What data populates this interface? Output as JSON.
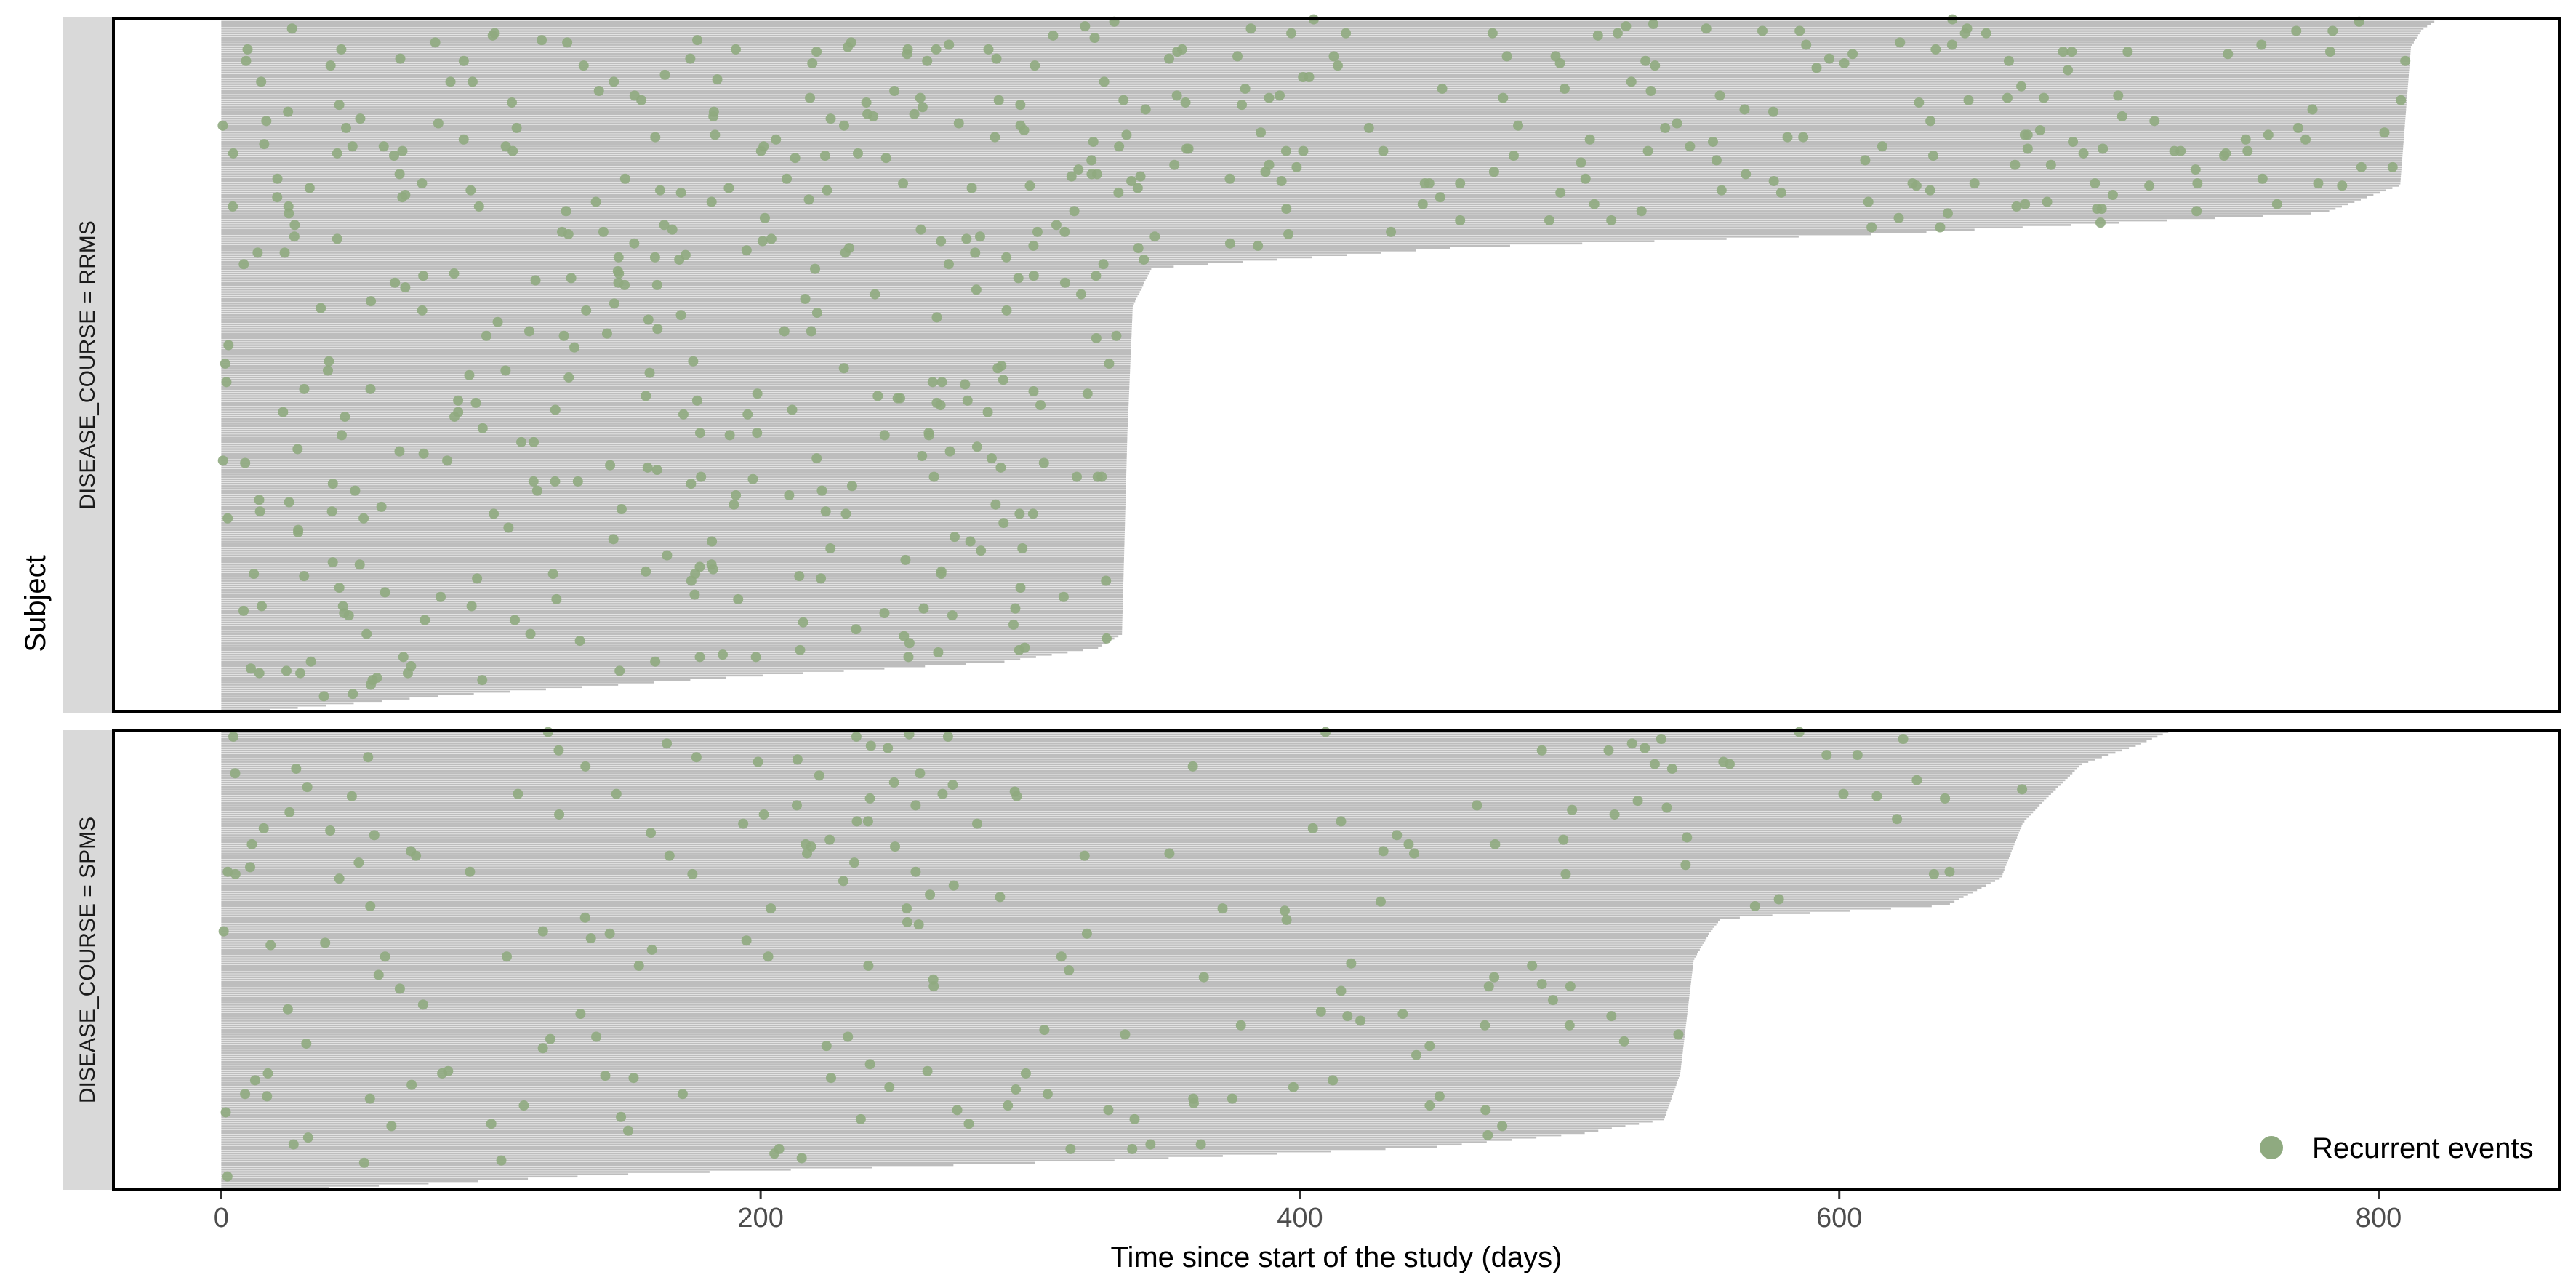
{
  "chart_data": {
    "type": "scatter",
    "subtype": "recurrent-event swimmer plot (horizontal follow-up bars per subject, events as points)",
    "xlabel": "Time since start of the study (days)",
    "ylabel": "Subject",
    "xlim": [
      -40,
      867
    ],
    "xticks": [
      0,
      200,
      400,
      600,
      800
    ],
    "grid": false,
    "legend": {
      "position": "bottom-right",
      "items": [
        {
          "label": "Recurrent events",
          "color": "#8FAA80"
        }
      ]
    },
    "colors": {
      "bar": "#BDBDBD",
      "point": "#8FAA80",
      "strip": "#D9D9D9",
      "frame": "#000000"
    },
    "panels": [
      {
        "label": "DISEASE_COURSE = RRMS",
        "n_subjects": 300,
        "follow_up_profile": [
          {
            "subject_fraction": 0.0,
            "days": 18
          },
          {
            "subject_fraction": 0.02,
            "days": 80
          },
          {
            "subject_fraction": 0.05,
            "days": 200
          },
          {
            "subject_fraction": 0.07,
            "days": 290
          },
          {
            "subject_fraction": 0.09,
            "days": 325
          },
          {
            "subject_fraction": 0.11,
            "days": 334
          },
          {
            "subject_fraction": 0.4,
            "days": 336
          },
          {
            "subject_fraction": 0.585,
            "days": 338
          },
          {
            "subject_fraction": 0.64,
            "days": 345
          },
          {
            "subject_fraction": 0.67,
            "days": 460
          },
          {
            "subject_fraction": 0.69,
            "days": 620
          },
          {
            "subject_fraction": 0.72,
            "days": 780
          },
          {
            "subject_fraction": 0.76,
            "days": 808
          },
          {
            "subject_fraction": 0.96,
            "days": 812
          },
          {
            "subject_fraction": 0.985,
            "days": 816
          },
          {
            "subject_fraction": 1.0,
            "days": 822
          }
        ],
        "event_count_approx": 560
      },
      {
        "label": "DISEASE_COURSE = SPMS",
        "n_subjects": 200,
        "follow_up_profile": [
          {
            "subject_fraction": 0.0,
            "days": 40
          },
          {
            "subject_fraction": 0.03,
            "days": 150
          },
          {
            "subject_fraction": 0.06,
            "days": 330
          },
          {
            "subject_fraction": 0.09,
            "days": 450
          },
          {
            "subject_fraction": 0.12,
            "days": 505
          },
          {
            "subject_fraction": 0.15,
            "days": 535
          },
          {
            "subject_fraction": 0.25,
            "days": 541
          },
          {
            "subject_fraction": 0.5,
            "days": 546
          },
          {
            "subject_fraction": 0.56,
            "days": 552
          },
          {
            "subject_fraction": 0.59,
            "days": 556
          },
          {
            "subject_fraction": 0.6,
            "days": 580
          },
          {
            "subject_fraction": 0.62,
            "days": 640
          },
          {
            "subject_fraction": 0.68,
            "days": 660
          },
          {
            "subject_fraction": 0.8,
            "days": 668
          },
          {
            "subject_fraction": 0.85,
            "days": 676
          },
          {
            "subject_fraction": 0.93,
            "days": 690
          },
          {
            "subject_fraction": 0.97,
            "days": 710
          },
          {
            "subject_fraction": 1.0,
            "days": 722
          }
        ],
        "event_count_approx": 220
      }
    ]
  }
}
